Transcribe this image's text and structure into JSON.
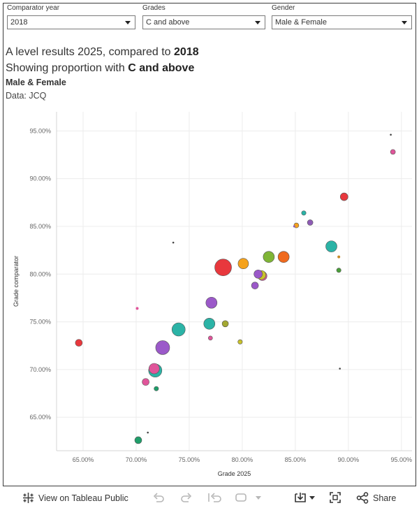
{
  "filters": [
    {
      "label": "Comparator year",
      "value": "2018"
    },
    {
      "label": "Grades",
      "value": "C and above"
    },
    {
      "label": "Gender",
      "value": "Male & Female"
    }
  ],
  "title": {
    "line1_prefix": "A level results 2025, compared to ",
    "line1_bold": "2018",
    "line2_prefix": "Showing proportion with ",
    "line2_bold": "C and above",
    "line3": "Male & Female",
    "line4": "Data: JCQ"
  },
  "toolbar": {
    "view_label": "View on Tableau Public",
    "share_label": "Share"
  },
  "chart_data": {
    "type": "scatter",
    "title": "A level results 2025, compared to 2018",
    "xlabel": "Grade 2025",
    "ylabel": "Grade comparator",
    "xlim": [
      62.5,
      96
    ],
    "ylim": [
      61.5,
      97
    ],
    "x_ticks": [
      65,
      70,
      75,
      80,
      85,
      90,
      95
    ],
    "y_ticks": [
      65,
      70,
      75,
      80,
      85,
      90,
      95
    ],
    "x_tick_labels": [
      "65.00%",
      "70.00%",
      "75.00%",
      "80.00%",
      "85.00%",
      "90.00%",
      "95.00%"
    ],
    "y_tick_labels": [
      "65.00%",
      "70.00%",
      "75.00%",
      "80.00%",
      "85.00%",
      "90.00%",
      "95.00%"
    ],
    "grid": true,
    "points": [
      {
        "x": 78.2,
        "y": 80.7,
        "size": 12,
        "color": "#e8383d"
      },
      {
        "x": 72.5,
        "y": 72.3,
        "size": 10,
        "color": "#9b59c9"
      },
      {
        "x": 74.0,
        "y": 74.2,
        "size": 9.5,
        "color": "#2bb3a6"
      },
      {
        "x": 71.8,
        "y": 69.9,
        "size": 9.5,
        "color": "#2bb3a6"
      },
      {
        "x": 71.7,
        "y": 70.1,
        "size": 7.5,
        "color": "#e0559a"
      },
      {
        "x": 88.4,
        "y": 82.9,
        "size": 8,
        "color": "#2bb3a6"
      },
      {
        "x": 77.1,
        "y": 77.0,
        "size": 8,
        "color": "#9b59c9"
      },
      {
        "x": 76.9,
        "y": 74.8,
        "size": 8,
        "color": "#2bb3a6"
      },
      {
        "x": 83.9,
        "y": 81.8,
        "size": 8,
        "color": "#ef6a1e"
      },
      {
        "x": 82.5,
        "y": 81.8,
        "size": 8,
        "color": "#7fb536"
      },
      {
        "x": 80.1,
        "y": 81.1,
        "size": 7.5,
        "color": "#f5a21c"
      },
      {
        "x": 81.9,
        "y": 79.8,
        "size": 6.5,
        "color": "#e0559a"
      },
      {
        "x": 81.5,
        "y": 80.0,
        "size": 6,
        "color": "#9b59c9"
      },
      {
        "x": 81.8,
        "y": 79.9,
        "size": 6.5,
        "color": "#c9c22a"
      },
      {
        "x": 89.6,
        "y": 88.1,
        "size": 5.5,
        "color": "#e8383d"
      },
      {
        "x": 64.6,
        "y": 72.8,
        "size": 5,
        "color": "#e8383d"
      },
      {
        "x": 70.2,
        "y": 62.6,
        "size": 5,
        "color": "#1f9e6a"
      },
      {
        "x": 81.2,
        "y": 78.8,
        "size": 5,
        "color": "#9b59c9"
      },
      {
        "x": 70.9,
        "y": 68.7,
        "size": 5,
        "color": "#e0559a"
      },
      {
        "x": 78.4,
        "y": 74.8,
        "size": 4.5,
        "color": "#a3a832"
      },
      {
        "x": 86.4,
        "y": 85.4,
        "size": 4,
        "color": "#8e5bb5"
      },
      {
        "x": 85.1,
        "y": 85.1,
        "size": 3.5,
        "color": "#f5a21c"
      },
      {
        "x": 94.2,
        "y": 92.8,
        "size": 3.5,
        "color": "#e0559a"
      },
      {
        "x": 85.8,
        "y": 86.4,
        "size": 3.2,
        "color": "#2bb3a6"
      },
      {
        "x": 89.1,
        "y": 80.4,
        "size": 3.2,
        "color": "#4a9e3a"
      },
      {
        "x": 71.9,
        "y": 68.0,
        "size": 3.2,
        "color": "#1f9e6a"
      },
      {
        "x": 79.8,
        "y": 72.9,
        "size": 3.2,
        "color": "#c9c22a"
      },
      {
        "x": 77.0,
        "y": 73.3,
        "size": 3,
        "color": "#e0559a"
      },
      {
        "x": 70.1,
        "y": 76.4,
        "size": 2,
        "color": "#e0559a"
      },
      {
        "x": 89.1,
        "y": 81.8,
        "size": 2,
        "color": "#c78a2a"
      },
      {
        "x": 84.9,
        "y": 85.0,
        "size": 1.5,
        "color": "#8e5bb5"
      },
      {
        "x": 94.0,
        "y": 94.6,
        "size": 1.3,
        "color": "#444444"
      },
      {
        "x": 73.5,
        "y": 83.3,
        "size": 1.3,
        "color": "#444444"
      },
      {
        "x": 89.2,
        "y": 70.1,
        "size": 1.3,
        "color": "#444444"
      },
      {
        "x": 71.1,
        "y": 63.4,
        "size": 1.3,
        "color": "#444444"
      }
    ]
  }
}
